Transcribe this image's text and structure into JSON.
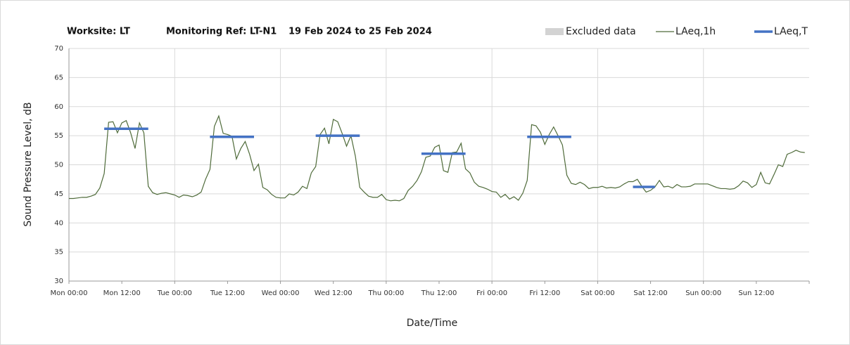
{
  "chart_data": {
    "type": "line",
    "title_parts": [
      "Worksite: LT",
      "Monitoring Ref: LT-N1",
      "19 Feb 2024 to 25 Feb 2024"
    ],
    "x_label": "Date/Time",
    "y_label": "Sound Pressure Level, dB",
    "xlim": [
      0,
      168
    ],
    "xticks": [
      {
        "value": 0,
        "label": "Mon 00:00"
      },
      {
        "value": 12,
        "label": "Mon 12:00"
      },
      {
        "value": 24,
        "label": "Tue 00:00"
      },
      {
        "value": 36,
        "label": "Tue 12:00"
      },
      {
        "value": 48,
        "label": "Wed 00:00"
      },
      {
        "value": 60,
        "label": "Wed 12:00"
      },
      {
        "value": 72,
        "label": "Thu 00:00"
      },
      {
        "value": 84,
        "label": "Thu 12:00"
      },
      {
        "value": 96,
        "label": "Fri 00:00"
      },
      {
        "value": 108,
        "label": "Fri 12:00"
      },
      {
        "value": 120,
        "label": "Sat 00:00"
      },
      {
        "value": 132,
        "label": "Sat 12:00"
      },
      {
        "value": 144,
        "label": "Sun 00:00"
      },
      {
        "value": 156,
        "label": "Sun 12:00"
      }
    ],
    "ylim": [
      30,
      70
    ],
    "yticks": [
      30,
      35,
      40,
      45,
      50,
      55,
      60,
      65,
      70
    ],
    "grid": true,
    "legend_position": "top-right",
    "excluded_legend": {
      "name": "Excluded data",
      "color": "#d3d3d3"
    },
    "series": [
      {
        "name": "LAeq,1h",
        "color": "#4f6b3a",
        "x": [
          0,
          1,
          2,
          3,
          4,
          5,
          6,
          7,
          8,
          9,
          10,
          11,
          12,
          13,
          14,
          15,
          16,
          17,
          18,
          19,
          20,
          21,
          22,
          23,
          24,
          25,
          26,
          27,
          28,
          29,
          30,
          31,
          32,
          33,
          34,
          35,
          36,
          37,
          38,
          39,
          40,
          41,
          42,
          43,
          44,
          45,
          46,
          47,
          48,
          49,
          50,
          51,
          52,
          53,
          54,
          55,
          56,
          57,
          58,
          59,
          60,
          61,
          62,
          63,
          64,
          65,
          66,
          67,
          68,
          69,
          70,
          71,
          72,
          73,
          74,
          75,
          76,
          77,
          78,
          79,
          80,
          81,
          82,
          83,
          84,
          85,
          86,
          87,
          88,
          89,
          90,
          91,
          92,
          93,
          94,
          95,
          96,
          97,
          98,
          99,
          100,
          101,
          102,
          103,
          104,
          105,
          106,
          107,
          108,
          109,
          110,
          111,
          112,
          113,
          114,
          115,
          116,
          117,
          118,
          119,
          120,
          121,
          122,
          123,
          124,
          125,
          126,
          127,
          128,
          129,
          130,
          131,
          132,
          133,
          134,
          135,
          136,
          137,
          138,
          139,
          140,
          141,
          142,
          143,
          144,
          145,
          146,
          147,
          148,
          149,
          150,
          151,
          152,
          153,
          154,
          155,
          156,
          157,
          158,
          159,
          160,
          161,
          162,
          163,
          164,
          165,
          166,
          167
        ],
        "values": [
          44.2,
          44.2,
          44.3,
          44.4,
          44.4,
          44.6,
          44.9,
          46.0,
          48.5,
          57.3,
          57.4,
          55.5,
          57.2,
          57.6,
          55.5,
          52.8,
          57.2,
          55.5,
          46.3,
          45.2,
          44.9,
          45.1,
          45.2,
          45.0,
          44.8,
          44.4,
          44.8,
          44.7,
          44.5,
          44.8,
          45.3,
          47.5,
          49.2,
          56.6,
          58.4,
          55.4,
          55.2,
          54.9,
          51.0,
          52.8,
          54.0,
          51.8,
          49.0,
          50.1,
          46.1,
          45.7,
          44.9,
          44.4,
          44.3,
          44.3,
          45.0,
          44.8,
          45.3,
          46.3,
          45.9,
          48.6,
          49.7,
          55.2,
          56.3,
          53.6,
          57.8,
          57.4,
          55.4,
          53.2,
          55.0,
          51.5,
          46.1,
          45.3,
          44.6,
          44.4,
          44.4,
          44.9,
          44.0,
          43.8,
          43.9,
          43.8,
          44.2,
          45.6,
          46.3,
          47.3,
          48.8,
          51.3,
          51.5,
          53.0,
          53.4,
          49.0,
          48.7,
          52.1,
          52.2,
          53.7,
          49.3,
          48.6,
          47.0,
          46.3,
          46.1,
          45.8,
          45.4,
          45.3,
          44.4,
          44.9,
          44.1,
          44.5,
          43.9,
          45.1,
          47.3,
          56.9,
          56.7,
          55.6,
          53.5,
          55.2,
          56.5,
          55.0,
          53.4,
          48.2,
          46.8,
          46.6,
          47.0,
          46.6,
          45.9,
          46.1,
          46.1,
          46.3,
          46.0,
          46.1,
          46.0,
          46.2,
          46.7,
          47.1,
          47.1,
          47.5,
          46.3,
          45.3,
          45.6,
          46.2,
          47.3,
          46.2,
          46.3,
          46.0,
          46.6,
          46.2,
          46.2,
          46.3,
          46.7,
          46.7,
          46.7,
          46.7,
          46.4,
          46.1,
          45.9,
          45.9,
          45.8,
          45.9,
          46.4,
          47.2,
          46.9,
          46.1,
          46.6,
          48.7,
          46.9,
          46.7,
          48.3,
          50.0,
          49.7,
          51.8,
          52.1,
          52.5,
          52.2,
          52.1
        ]
      },
      {
        "name": "LAeq,T",
        "color": "#4472c4",
        "segments": [
          {
            "x": [
              8,
              18
            ],
            "value": 56.2
          },
          {
            "x": [
              32,
              42
            ],
            "value": 54.8
          },
          {
            "x": [
              56,
              66
            ],
            "value": 55.0
          },
          {
            "x": [
              80,
              90
            ],
            "value": 51.9
          },
          {
            "x": [
              104,
              114
            ],
            "value": 54.8
          },
          {
            "x": [
              128,
              133
            ],
            "value": 46.2
          }
        ]
      }
    ]
  }
}
